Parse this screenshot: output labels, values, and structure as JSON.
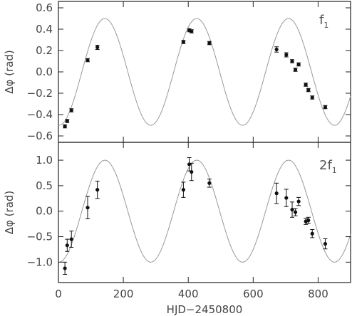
{
  "chart_data": {
    "xlabel": "HJD−2450800",
    "xlim": [
      0,
      900
    ],
    "xticks": [
      0,
      200,
      400,
      600,
      800
    ],
    "panels": [
      {
        "type": "scatter",
        "ylabel": "Δφ (rad)",
        "label_main": "f",
        "label_sub": "1",
        "label_prefix": "",
        "ylim": [
          -0.66,
          0.66
        ],
        "yticks": [
          -0.6,
          -0.4,
          -0.2,
          0.0,
          0.2,
          0.4,
          0.6
        ],
        "ytick_labels": [
          "−0.6",
          "−0.4",
          "−0.2",
          "0.0",
          "0.2",
          "0.4",
          "0.6"
        ],
        "model": {
          "amplitude": 0.5,
          "period": 283,
          "peak_x": 143
        },
        "points": [
          {
            "x": 20,
            "y": -0.51,
            "err": 0.015
          },
          {
            "x": 27,
            "y": -0.46,
            "err": 0.015
          },
          {
            "x": 40,
            "y": -0.36,
            "err": 0.015
          },
          {
            "x": 90,
            "y": 0.11,
            "err": 0.015
          },
          {
            "x": 120,
            "y": 0.23,
            "err": 0.02
          },
          {
            "x": 385,
            "y": 0.28,
            "err": 0.015
          },
          {
            "x": 403,
            "y": 0.39,
            "err": 0.015
          },
          {
            "x": 410,
            "y": 0.38,
            "err": 0.015
          },
          {
            "x": 465,
            "y": 0.27,
            "err": 0.015
          },
          {
            "x": 672,
            "y": 0.21,
            "err": 0.025
          },
          {
            "x": 702,
            "y": 0.16,
            "err": 0.02
          },
          {
            "x": 720,
            "y": 0.1,
            "err": 0.015
          },
          {
            "x": 730,
            "y": 0.02,
            "err": 0.015
          },
          {
            "x": 740,
            "y": 0.07,
            "err": 0.015
          },
          {
            "x": 762,
            "y": -0.12,
            "err": 0.015
          },
          {
            "x": 770,
            "y": -0.17,
            "err": 0.015
          },
          {
            "x": 782,
            "y": -0.24,
            "err": 0.015
          },
          {
            "x": 822,
            "y": -0.33,
            "err": 0.015
          }
        ]
      },
      {
        "type": "scatter",
        "ylabel": "Δφ (rad)",
        "label_main": "f",
        "label_sub": "1",
        "label_prefix": "2",
        "ylim": [
          -1.4,
          1.35
        ],
        "yticks": [
          -1.0,
          -0.5,
          0.0,
          0.5,
          1.0
        ],
        "ytick_labels": [
          "−1.0",
          "−0.5",
          "0.0",
          "0.5",
          "1.0"
        ],
        "model": {
          "amplitude": 1.0,
          "period": 283,
          "peak_x": 143
        },
        "points": [
          {
            "x": 20,
            "y": -1.12,
            "err": 0.12
          },
          {
            "x": 27,
            "y": -0.67,
            "err": 0.12
          },
          {
            "x": 40,
            "y": -0.55,
            "err": 0.16
          },
          {
            "x": 90,
            "y": 0.07,
            "err": 0.22
          },
          {
            "x": 120,
            "y": 0.42,
            "err": 0.17
          },
          {
            "x": 385,
            "y": 0.42,
            "err": 0.15
          },
          {
            "x": 403,
            "y": 0.92,
            "err": 0.13
          },
          {
            "x": 410,
            "y": 0.77,
            "err": 0.17
          },
          {
            "x": 465,
            "y": 0.55,
            "err": 0.08
          },
          {
            "x": 672,
            "y": 0.35,
            "err": 0.2
          },
          {
            "x": 702,
            "y": 0.26,
            "err": 0.17
          },
          {
            "x": 720,
            "y": 0.03,
            "err": 0.15
          },
          {
            "x": 730,
            "y": -0.02,
            "err": 0.07
          },
          {
            "x": 740,
            "y": 0.19,
            "err": 0.08
          },
          {
            "x": 762,
            "y": -0.2,
            "err": 0.06
          },
          {
            "x": 770,
            "y": -0.18,
            "err": 0.06
          },
          {
            "x": 782,
            "y": -0.44,
            "err": 0.08
          },
          {
            "x": 822,
            "y": -0.64,
            "err": 0.1
          }
        ]
      }
    ]
  }
}
